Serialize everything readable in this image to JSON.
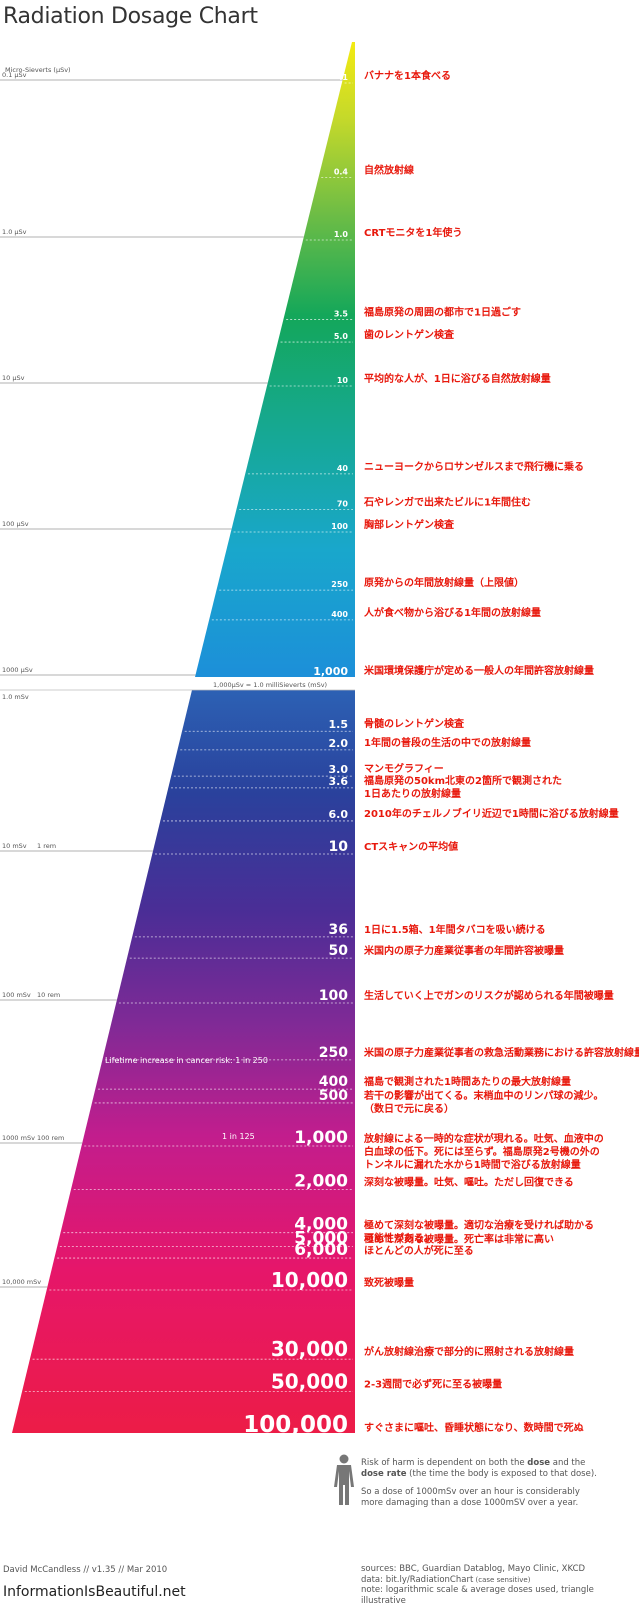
{
  "title": "Radiation Dosage Chart",
  "colors": {
    "annotation": "#e8180c"
  },
  "units": {
    "micro_label": "Micro-Sieverts (μSv)",
    "ticks": [
      {
        "label": "0.1 μSv",
        "extra": ""
      },
      {
        "label": "1.0 μSv",
        "extra": ""
      },
      {
        "label": "10 μSv",
        "extra": ""
      },
      {
        "label": "100 μSv",
        "extra": ""
      },
      {
        "label": "1000 μSv",
        "extra": ""
      },
      {
        "label": "1.0 mSv",
        "extra": ""
      },
      {
        "label": "10 mSv",
        "extra": "1 rem"
      },
      {
        "label": "100 mSv",
        "extra": "10 rem"
      },
      {
        "label": "1000 mSv",
        "extra": "100 rem"
      },
      {
        "label": "10,000 mSv",
        "extra": ""
      }
    ],
    "conversion": "1,000μSv = 1.0 milliSieverts (mSv)"
  },
  "risk_notes": {
    "r250": "Lifetime increase in cancer risk:  1 in 250",
    "r125": "1 in 125"
  },
  "chart_data": {
    "type": "bar",
    "scale": "log",
    "sections": [
      {
        "unit": "μSv",
        "items": [
          {
            "value": 0.1,
            "label": ".1",
            "text": "バナナを1本食べる"
          },
          {
            "value": 0.4,
            "label": "0.4",
            "text": "自然放射線"
          },
          {
            "value": 1.0,
            "label": "1.0",
            "text": "CRTモニタを1年使う"
          },
          {
            "value": 3.5,
            "label": "3.5",
            "text": "福島原発の周囲の都市で1日過ごす"
          },
          {
            "value": 5.0,
            "label": "5.0",
            "text": "歯のレントゲン検査"
          },
          {
            "value": 10,
            "label": "10",
            "text": "平均的な人が、1日に浴びる自然放射線量"
          },
          {
            "value": 40,
            "label": "40",
            "text": "ニューヨークからロサンゼルスまで飛行機に乗る"
          },
          {
            "value": 70,
            "label": "70",
            "text": "石やレンガで出来たビルに1年間住む"
          },
          {
            "value": 100,
            "label": "100",
            "text": "胸部レントゲン検査"
          },
          {
            "value": 250,
            "label": "250",
            "text": "原発からの年間放射線量（上限値）"
          },
          {
            "value": 400,
            "label": "400",
            "text": "人が食べ物から浴びる1年間の放射線量"
          },
          {
            "value": 1000,
            "label": "1,000",
            "text": "米国環境保護庁が定める一般人の年間許容放射線量"
          }
        ]
      },
      {
        "unit": "mSv",
        "items": [
          {
            "value": 1.5,
            "label": "1.5",
            "text": "骨髄のレントゲン検査"
          },
          {
            "value": 2.0,
            "label": "2.0",
            "text": "1年間の普段の生活の中での放射線量"
          },
          {
            "value": 3.0,
            "label": "3.0",
            "text": "マンモグラフィー"
          },
          {
            "value": 3.6,
            "label": "3.6",
            "text": "福島原発の50km北東の2箇所で観測された\n1日あたりの放射線量"
          },
          {
            "value": 6.0,
            "label": "6.0",
            "text": "2010年のチェルノブイリ近辺で1時間に浴びる放射線量"
          },
          {
            "value": 10,
            "label": "10",
            "text": "CTスキャンの平均値"
          },
          {
            "value": 36,
            "label": "36",
            "text": "1日に1.5箱、1年間タバコを吸い続ける"
          },
          {
            "value": 50,
            "label": "50",
            "text": "米国内の原子力産業従事者の年間許容被曝量"
          },
          {
            "value": 100,
            "label": "100",
            "text": "生活していく上でガンのリスクが認められる年間被曝量"
          },
          {
            "value": 250,
            "label": "250",
            "text": "米国の原子力産業従事者の救急活動業務における許容放射線量"
          },
          {
            "value": 400,
            "label": "400",
            "text": "福島で観測された1時間あたりの最大放射線量"
          },
          {
            "value": 500,
            "label": "500",
            "text": "若干の影響が出てくる。末梢血中のリンパ球の減少。\n（数日で元に戻る）"
          },
          {
            "value": 1000,
            "label": "1,000",
            "text": "放射線による一時的な症状が現れる。吐気、血液中の\n白血球の低下。死には至らず。福島原発2号機の外の\nトンネルに漏れた水から1時間で浴びる放射線量"
          },
          {
            "value": 2000,
            "label": "2,000",
            "text": "深刻な被曝量。吐気、嘔吐。ただし回復できる"
          },
          {
            "value": 4000,
            "label": "4,000",
            "text": "極めて深刻な被曝量。適切な治療を受ければ助かる\n可能性がある。"
          },
          {
            "value": 5000,
            "label": "5,000",
            "text": "極めて深刻な被曝量。死亡率は非常に高い"
          },
          {
            "value": 6000,
            "label": "6,000",
            "text": "ほとんどの人が死に至る"
          },
          {
            "value": 10000,
            "label": "10,000",
            "text": "致死被曝量"
          },
          {
            "value": 30000,
            "label": "30,000",
            "text": "がん放射線治療で部分的に照射される放射線量"
          },
          {
            "value": 50000,
            "label": "50,000",
            "text": "2-3週間で必ず死に至る被曝量"
          },
          {
            "value": 100000,
            "label": "100,000",
            "text": "すぐさまに嘔吐、昏睡状態になり、数時間で死ぬ"
          }
        ]
      }
    ]
  },
  "footer": {
    "risk_note_1a": "Risk of harm is dependent on both the ",
    "risk_note_1b": "dose",
    "risk_note_1c": " and the",
    "risk_note_2a": "dose rate",
    "risk_note_2b": " (the time the body is exposed to that dose).",
    "risk_note_3": "So a dose of 1000mSv over an hour is considerably",
    "risk_note_4": "more damaging than a dose 1000mSV over a year.",
    "credit": "David McCandless // v1.35 // Mar 2010",
    "site": "InformationIsBeautiful.net",
    "sources": "sources: BBC, Guardian Datablog, Mayo Clinic, XKCD",
    "data_link": "data: bit.ly/RadiationChart",
    "data_link_note": "  (case sensitive)",
    "note": "note: logarithmic scale & average doses used, triangle illustrative"
  }
}
